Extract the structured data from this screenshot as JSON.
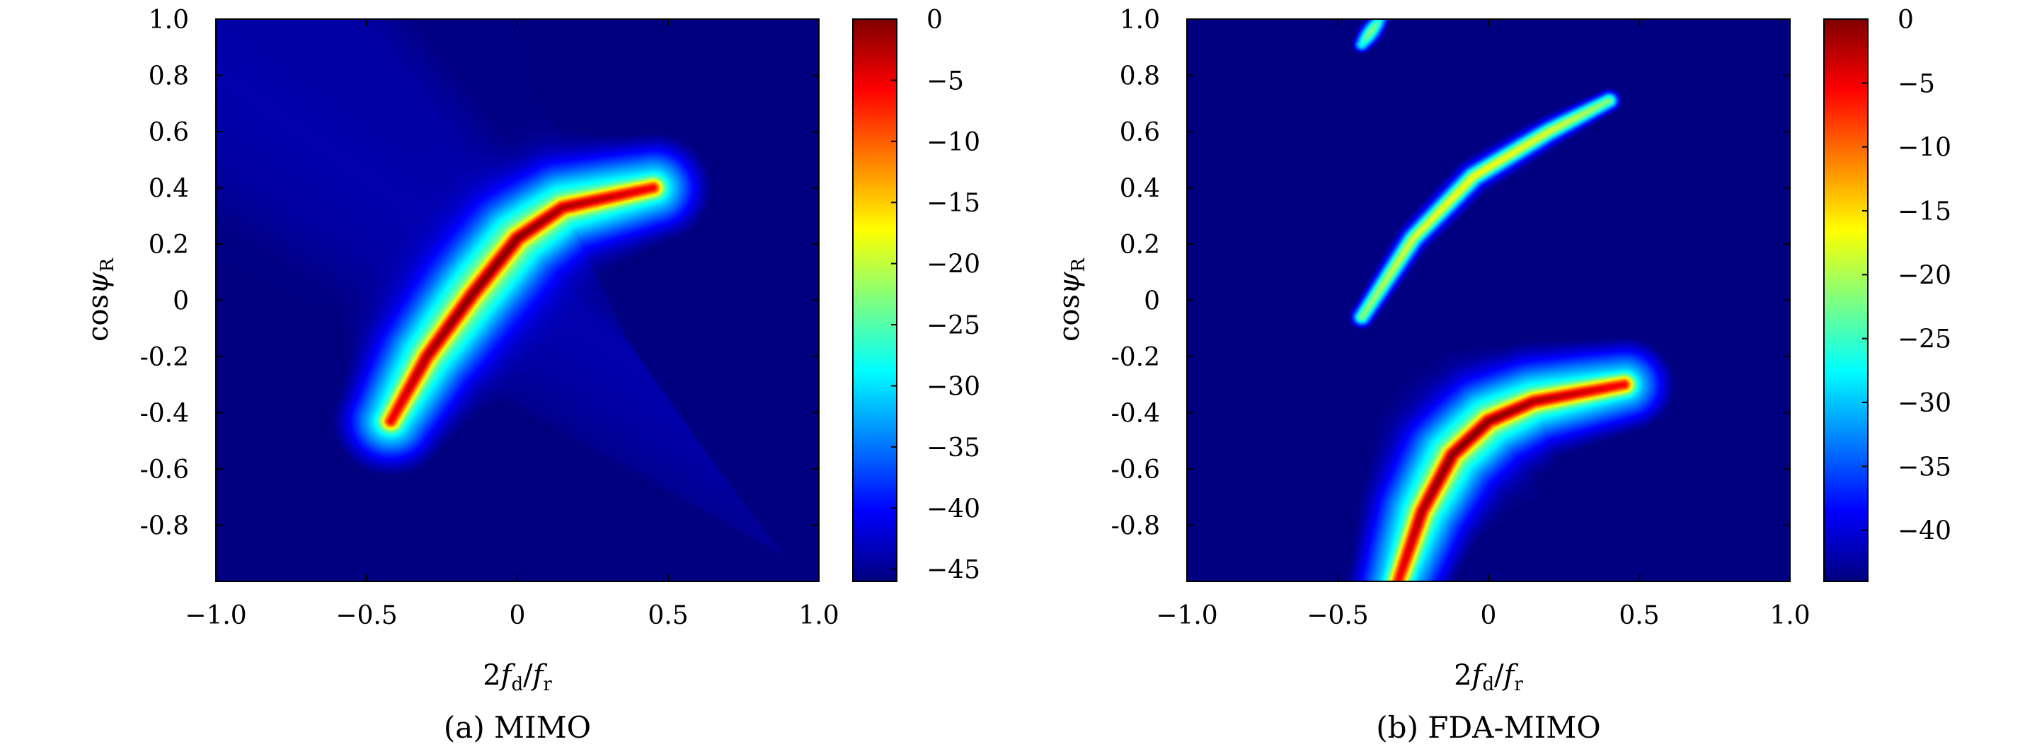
{
  "chart_data": [
    {
      "type": "heatmap",
      "caption": "(a) MIMO",
      "xlabel": "2f_d/f_r",
      "ylabel": "cosψ_R",
      "xlim": [
        -1.0,
        1.0
      ],
      "ylim": [
        -1.0,
        1.0
      ],
      "x_ticks": [
        -1.0,
        -0.5,
        0,
        0.5,
        1.0
      ],
      "x_tick_labels": [
        "−1.0",
        "−0.5",
        "0",
        "0.5",
        "1.0"
      ],
      "y_ticks": [
        1.0,
        0.8,
        0.6,
        0.4,
        0.2,
        0,
        -0.2,
        -0.4,
        -0.6,
        -0.8
      ],
      "y_tick_labels": [
        "1.0",
        "0.8",
        "0.6",
        "0.4",
        "0.2",
        "0",
        "-0.2",
        "-0.4",
        "-0.6",
        "-0.8"
      ],
      "colormap": "jet",
      "color_range": [
        -46,
        0
      ],
      "colorbar_ticks": [
        0,
        -5,
        -10,
        -15,
        -20,
        -25,
        -30,
        -35,
        -40,
        -45
      ],
      "colorbar_tick_labels": [
        "0",
        "−5",
        "−10",
        "−15",
        "−20",
        "−25",
        "−30",
        "−35",
        "−40",
        "−45"
      ],
      "ridges": [
        {
          "peak_db": 0,
          "points": [
            [
              -0.42,
              -0.43
            ],
            [
              -0.3,
              -0.2
            ],
            [
              -0.15,
              0.02
            ],
            [
              0.0,
              0.22
            ],
            [
              0.15,
              0.33
            ],
            [
              0.45,
              0.4
            ]
          ]
        }
      ]
    },
    {
      "type": "heatmap",
      "caption": "(b) FDA-MIMO",
      "xlabel": "2f_d/f_r",
      "ylabel": "cosψ_R",
      "xlim": [
        -1.0,
        1.0
      ],
      "ylim": [
        -1.0,
        1.0
      ],
      "x_ticks": [
        -1.0,
        -0.5,
        0,
        0.5,
        1.0
      ],
      "x_tick_labels": [
        "−1.0",
        "−0.5",
        "0",
        "0.5",
        "1.0"
      ],
      "y_ticks": [
        1.0,
        0.8,
        0.6,
        0.4,
        0.2,
        0,
        -0.2,
        -0.4,
        -0.6,
        -0.8
      ],
      "y_tick_labels": [
        "1.0",
        "0.8",
        "0.6",
        "0.4",
        "0.2",
        "0",
        "-0.2",
        "-0.4",
        "-0.6",
        "-0.8"
      ],
      "colormap": "jet",
      "color_range": [
        -44,
        0
      ],
      "colorbar_ticks": [
        0,
        -5,
        -10,
        -15,
        -20,
        -25,
        -30,
        -35,
        -40
      ],
      "colorbar_tick_labels": [
        "0",
        "−5",
        "−10",
        "−15",
        "−20",
        "−25",
        "−30",
        "−35",
        "−40"
      ],
      "ridges": [
        {
          "peak_db": -17,
          "points": [
            [
              -0.42,
              -0.06
            ],
            [
              -0.25,
              0.22
            ],
            [
              -0.05,
              0.44
            ],
            [
              0.2,
              0.6
            ],
            [
              0.4,
              0.71
            ]
          ]
        },
        {
          "peak_db": -22,
          "points": [
            [
              -0.42,
              0.91
            ],
            [
              -0.36,
              1.0
            ]
          ]
        },
        {
          "peak_db": 0,
          "points": [
            [
              -0.3,
              -1.0
            ],
            [
              -0.22,
              -0.75
            ],
            [
              -0.12,
              -0.55
            ],
            [
              0.0,
              -0.43
            ],
            [
              0.15,
              -0.36
            ],
            [
              0.45,
              -0.3
            ]
          ]
        }
      ]
    }
  ]
}
